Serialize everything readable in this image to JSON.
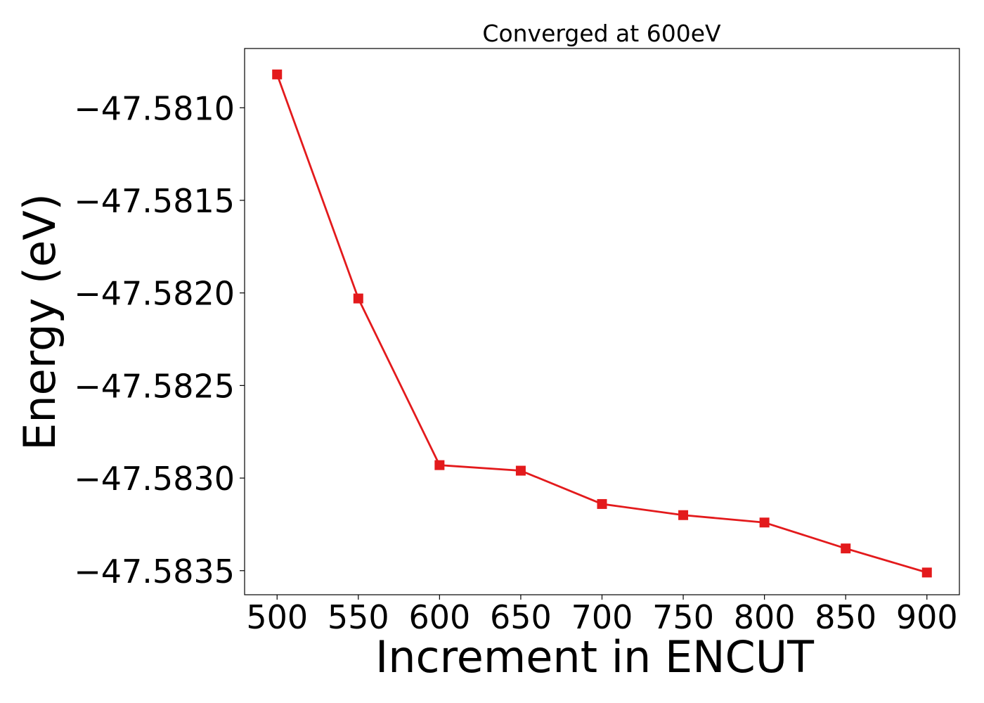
{
  "chart_data": {
    "type": "line",
    "title": "Converged at 600eV",
    "xlabel": "Increment in ENCUT",
    "ylabel": "Energy (eV)",
    "x": [
      500,
      550,
      600,
      650,
      700,
      750,
      800,
      850,
      900
    ],
    "series": [
      {
        "values": [
          -47.58082,
          -47.58203,
          -47.58293,
          -47.58296,
          -47.58314,
          -47.5832,
          -47.58324,
          -47.58338,
          -47.58351
        ],
        "color": "#e31a1c",
        "marker": "square"
      }
    ],
    "xticks": [
      500,
      550,
      600,
      650,
      700,
      750,
      800,
      850,
      900
    ],
    "xtick_labels": [
      "500",
      "550",
      "600",
      "650",
      "700",
      "750",
      "800",
      "850",
      "900"
    ],
    "yticks": [
      -47.581,
      -47.5815,
      -47.582,
      -47.5825,
      -47.583,
      -47.5835
    ],
    "ytick_labels": [
      "−47.5810",
      "−47.5815",
      "−47.5820",
      "−47.5825",
      "−47.5830",
      "−47.5835"
    ],
    "xlim": [
      480,
      920
    ],
    "ylim": [
      -47.58363,
      -47.58068
    ],
    "grid": false,
    "legend": "none"
  }
}
